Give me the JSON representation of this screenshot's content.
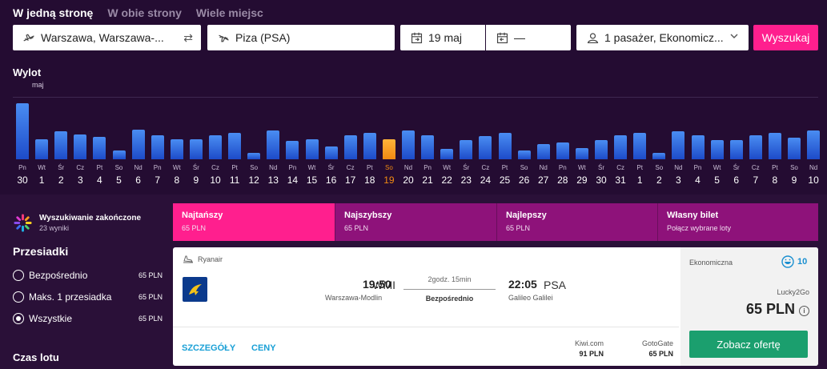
{
  "trip_tabs": [
    "W jedną stronę",
    "W obie strony",
    "Wiele miejsc"
  ],
  "search": {
    "from": "Warszawa, Warszawa-...",
    "to": "Piza (PSA)",
    "date": "19 maj",
    "return": "—",
    "passengers": "1 pasażer, Ekonomicz...",
    "button": "Wyszukaj"
  },
  "departure": {
    "title": "Wylot",
    "month": "maj",
    "selected_index": 19,
    "days": [
      {
        "wd": "Pn",
        "d": "30",
        "v": 0.92
      },
      {
        "wd": "Wt",
        "d": "1",
        "v": 0.33
      },
      {
        "wd": "Śr",
        "d": "2",
        "v": 0.46
      },
      {
        "wd": "Cz",
        "d": "3",
        "v": 0.41
      },
      {
        "wd": "Pt",
        "d": "4",
        "v": 0.37
      },
      {
        "wd": "So",
        "d": "5",
        "v": 0.14
      },
      {
        "wd": "Nd",
        "d": "6",
        "v": 0.49
      },
      {
        "wd": "Pn",
        "d": "7",
        "v": 0.4
      },
      {
        "wd": "Wt",
        "d": "8",
        "v": 0.33
      },
      {
        "wd": "Śr",
        "d": "9",
        "v": 0.33
      },
      {
        "wd": "Cz",
        "d": "10",
        "v": 0.4
      },
      {
        "wd": "Pt",
        "d": "11",
        "v": 0.44
      },
      {
        "wd": "So",
        "d": "12",
        "v": 0.11
      },
      {
        "wd": "Nd",
        "d": "13",
        "v": 0.48
      },
      {
        "wd": "Pn",
        "d": "14",
        "v": 0.3
      },
      {
        "wd": "Wt",
        "d": "15",
        "v": 0.33
      },
      {
        "wd": "Śr",
        "d": "16",
        "v": 0.21
      },
      {
        "wd": "Cz",
        "d": "17",
        "v": 0.4
      },
      {
        "wd": "Pt",
        "d": "18",
        "v": 0.43
      },
      {
        "wd": "So",
        "d": "19",
        "v": 0.33
      },
      {
        "wd": "Nd",
        "d": "20",
        "v": 0.48
      },
      {
        "wd": "Pn",
        "d": "21",
        "v": 0.39
      },
      {
        "wd": "Wt",
        "d": "22",
        "v": 0.17
      },
      {
        "wd": "Śr",
        "d": "23",
        "v": 0.32
      },
      {
        "wd": "Cz",
        "d": "24",
        "v": 0.38
      },
      {
        "wd": "Pt",
        "d": "25",
        "v": 0.43
      },
      {
        "wd": "So",
        "d": "26",
        "v": 0.14
      },
      {
        "wd": "Nd",
        "d": "27",
        "v": 0.25
      },
      {
        "wd": "Pn",
        "d": "28",
        "v": 0.27
      },
      {
        "wd": "Wt",
        "d": "29",
        "v": 0.19
      },
      {
        "wd": "Śr",
        "d": "30",
        "v": 0.31
      },
      {
        "wd": "Cz",
        "d": "31",
        "v": 0.39
      },
      {
        "wd": "Pt",
        "d": "1",
        "v": 0.44
      },
      {
        "wd": "So",
        "d": "2",
        "v": 0.11
      },
      {
        "wd": "Nd",
        "d": "3",
        "v": 0.46
      },
      {
        "wd": "Pn",
        "d": "4",
        "v": 0.4
      },
      {
        "wd": "Wt",
        "d": "5",
        "v": 0.31
      },
      {
        "wd": "Śr",
        "d": "6",
        "v": 0.32
      },
      {
        "wd": "Cz",
        "d": "7",
        "v": 0.39
      },
      {
        "wd": "Pt",
        "d": "8",
        "v": 0.44
      },
      {
        "wd": "So",
        "d": "9",
        "v": 0.35
      },
      {
        "wd": "Nd",
        "d": "10",
        "v": 0.47
      }
    ]
  },
  "status": {
    "title": "Wyszukiwanie zakończone",
    "count": "23 wyniki"
  },
  "filters": {
    "title": "Przesiadki",
    "options": [
      {
        "label": "Bezpośrednio",
        "price": "65 PLN",
        "checked": false
      },
      {
        "label": "Maks. 1 przesiadka",
        "price": "65 PLN",
        "checked": false
      },
      {
        "label": "Wszystkie",
        "price": "65 PLN",
        "checked": true
      }
    ],
    "next_title": "Czas lotu"
  },
  "sort_tabs": [
    {
      "title": "Najtańszy",
      "sub": "65 PLN",
      "color": "#ff1f8e"
    },
    {
      "title": "Najszybszy",
      "sub": "65 PLN",
      "color": "#8e127a"
    },
    {
      "title": "Najlepszy",
      "sub": "65 PLN",
      "color": "#8e127a"
    },
    {
      "title": "Własny bilet",
      "sub": "Połącz wybrane loty",
      "color": "#8e127a"
    }
  ],
  "result": {
    "carrier": "Ryanair",
    "dep_code": "WMI",
    "dep_time": "19:50",
    "dep_name": "Warszawa-Modlin",
    "duration": "2godz. 15min",
    "stops": "Bezpośrednio",
    "arr_time": "22:05",
    "arr_code": "PSA",
    "arr_name": "Galileo Galilei",
    "details_link": "SZCZEGÓŁY",
    "prices_link": "CENY",
    "otas": [
      {
        "name": "Kiwi.com",
        "price": "91 PLN"
      },
      {
        "name": "GotoGate",
        "price": "65 PLN"
      }
    ],
    "cabin": "Ekonomiczna",
    "score": "10",
    "partner": "Lucky2Go",
    "price": "65 PLN",
    "info": "i",
    "offer_button": "Zobacz ofertę"
  }
}
